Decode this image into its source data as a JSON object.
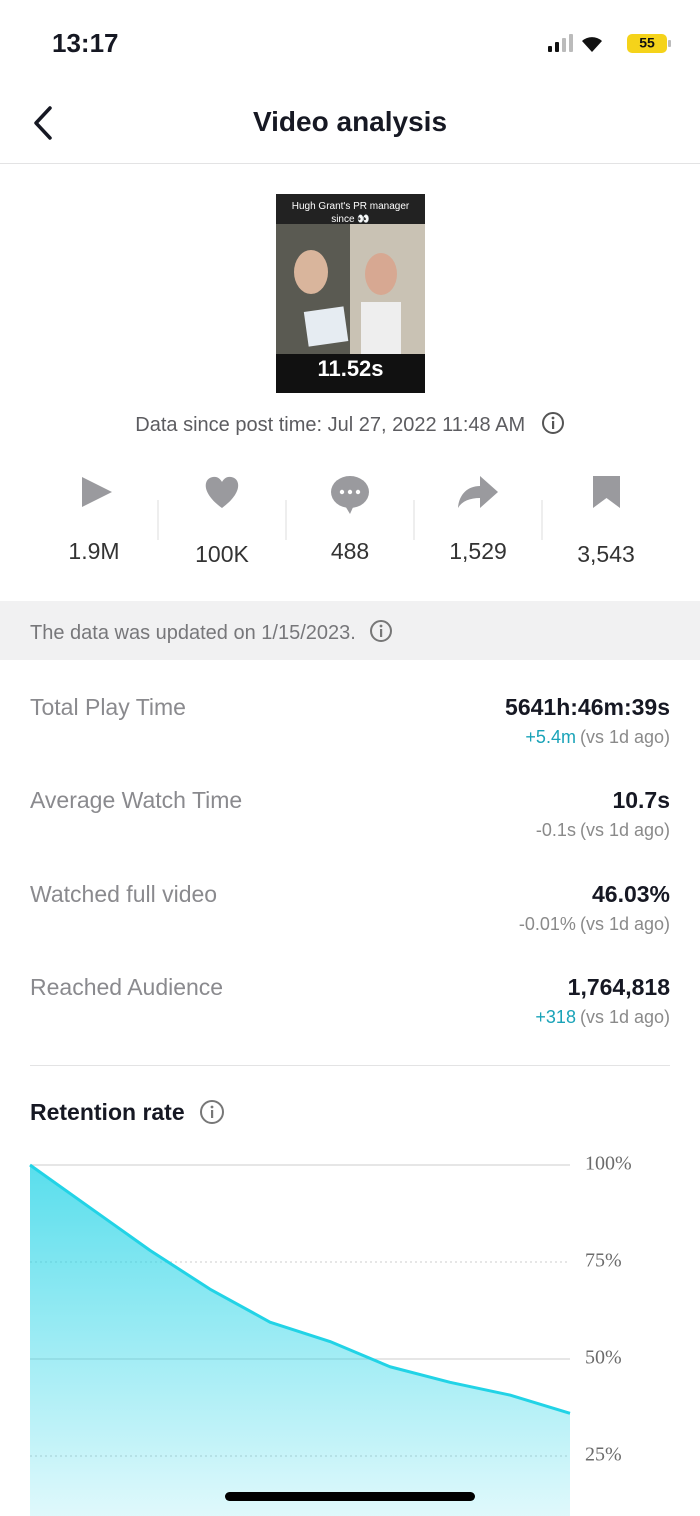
{
  "status_bar": {
    "time": "13:17",
    "battery": "55"
  },
  "header": {
    "title": "Video analysis"
  },
  "video": {
    "caption": "Hugh Grant's PR manager since 👀",
    "duration": "11.52s"
  },
  "post_time": "Data since post time: Jul 27, 2022 11:48 AM",
  "stats": [
    "1.9M",
    "100K",
    "488",
    "1,529",
    "3,543"
  ],
  "notice": "The data was updated on 1/15/2023.",
  "metrics": [
    {
      "label": "Total Play Time",
      "value": "5641h:46m:39s",
      "change": "+5.4m",
      "change_color": "#1aa3b8",
      "comparison": "(vs 1d ago)"
    },
    {
      "label": "Average Watch Time",
      "value": "10.7s",
      "change": "-0.1s",
      "change_color": "#8a8a8a",
      "comparison": "(vs 1d ago)"
    },
    {
      "label": "Watched full video",
      "value": "46.03%",
      "change": "-0.01%",
      "change_color": "#8a8a8a",
      "comparison": "(vs 1d ago)"
    },
    {
      "label": "Reached Audience",
      "value": "1,764,818",
      "change": "+318",
      "change_color": "#1aa3b8",
      "comparison": "(vs 1d ago)"
    }
  ],
  "chart_data": {
    "type": "area",
    "title": "Retention rate",
    "values": [
      100,
      89,
      78,
      68,
      59.5,
      54.5,
      48,
      44,
      40.7,
      36
    ],
    "color": "#22d3e6",
    "ylim": [
      0,
      100
    ],
    "yticks": [
      {
        "value": 100,
        "label": "100%"
      },
      {
        "value": 75,
        "label": "75%"
      },
      {
        "value": 50,
        "label": "50%"
      },
      {
        "value": 25,
        "label": "25%"
      }
    ],
    "grid": true
  }
}
